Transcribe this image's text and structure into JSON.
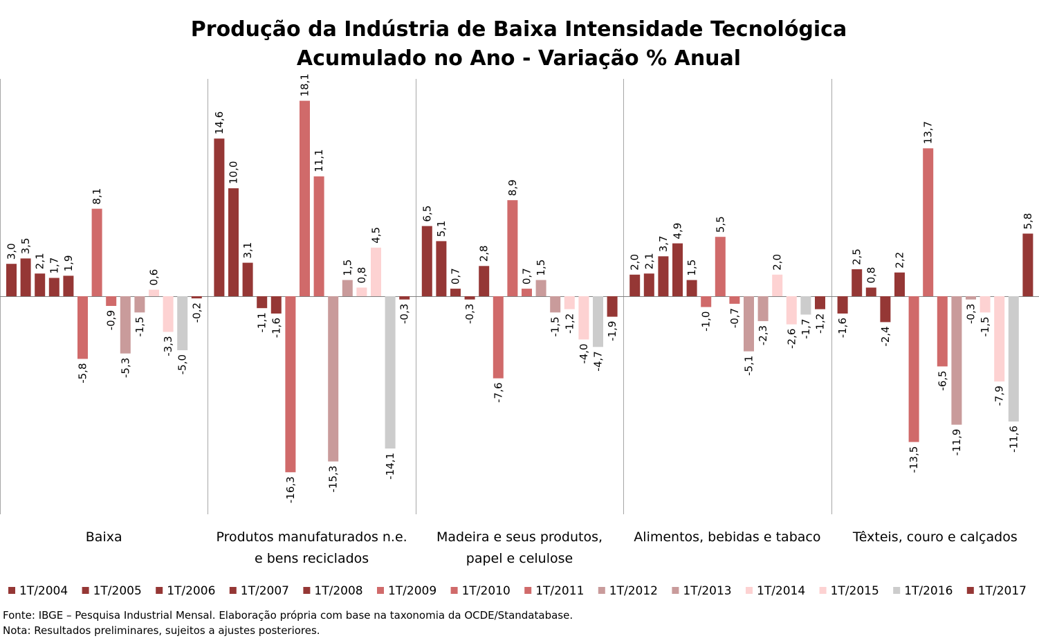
{
  "chart_data": {
    "type": "bar",
    "title": [
      "Produção da Indústria de Baixa Intensidade Tecnológica",
      "Acumulado no Ano - Variação % Anual"
    ],
    "categories": [
      [
        "Baixa"
      ],
      [
        "Produtos manufaturados n.e.",
        "e bens reciclados"
      ],
      [
        "Madeira e seus produtos,",
        "papel e celulose"
      ],
      [
        "Alimentos, bebidas e tabaco"
      ],
      [
        "Têxteis, couro e calçados"
      ]
    ],
    "series": [
      {
        "name": "1T/2004",
        "color": "#953735",
        "values": [
          3.0,
          14.6,
          6.5,
          2.0,
          -1.6
        ]
      },
      {
        "name": "1T/2005",
        "color": "#953735",
        "values": [
          3.5,
          10.0,
          5.1,
          2.1,
          2.5
        ]
      },
      {
        "name": "1T/2006",
        "color": "#953735",
        "values": [
          2.1,
          3.1,
          0.7,
          3.7,
          0.8
        ]
      },
      {
        "name": "1T/2007",
        "color": "#953735",
        "values": [
          1.7,
          -1.1,
          -0.3,
          4.9,
          -2.4
        ]
      },
      {
        "name": "1T/2008",
        "color": "#953735",
        "values": [
          1.9,
          -1.6,
          2.8,
          1.5,
          2.2
        ]
      },
      {
        "name": "1T/2009",
        "color": "#d06a6a",
        "values": [
          -5.8,
          -16.3,
          -7.6,
          -1.0,
          -13.5
        ]
      },
      {
        "name": "1T/2010",
        "color": "#d06a6a",
        "values": [
          8.1,
          18.1,
          8.9,
          5.5,
          13.7
        ]
      },
      {
        "name": "1T/2011",
        "color": "#d06a6a",
        "values": [
          -0.9,
          11.1,
          0.7,
          -0.7,
          -6.5
        ]
      },
      {
        "name": "1T/2012",
        "color": "#c99b9b",
        "values": [
          -5.3,
          -15.3,
          1.5,
          -5.1,
          -11.9
        ]
      },
      {
        "name": "1T/2013",
        "color": "#c99b9b",
        "values": [
          -1.5,
          1.5,
          -1.5,
          -2.3,
          -0.3
        ]
      },
      {
        "name": "1T/2014",
        "color": "#fdd2d2",
        "values": [
          0.6,
          0.8,
          -1.2,
          2.0,
          -1.5
        ]
      },
      {
        "name": "1T/2015",
        "color": "#fdd2d2",
        "values": [
          -3.3,
          4.5,
          -4.0,
          -2.6,
          -7.9
        ]
      },
      {
        "name": "1T/2016",
        "color": "#cccccc",
        "values": [
          -5.0,
          -14.1,
          -4.7,
          -1.7,
          -11.6
        ]
      },
      {
        "name": "1T/2017",
        "color": "#953735",
        "values": [
          -0.2,
          -0.3,
          -1.9,
          -1.2,
          5.8
        ]
      }
    ],
    "ylim": [
      -20.5,
      20
    ],
    "grid": false,
    "legend_position": "bottom",
    "decimal_separator": ","
  },
  "footer": {
    "source": "Fonte: IBGE – Pesquisa Industrial Mensal. Elaboração própria com base na taxonomia da OCDE/Standatabase.",
    "note": "Nota: Resultados preliminares, sujeitos a ajustes posteriores."
  }
}
